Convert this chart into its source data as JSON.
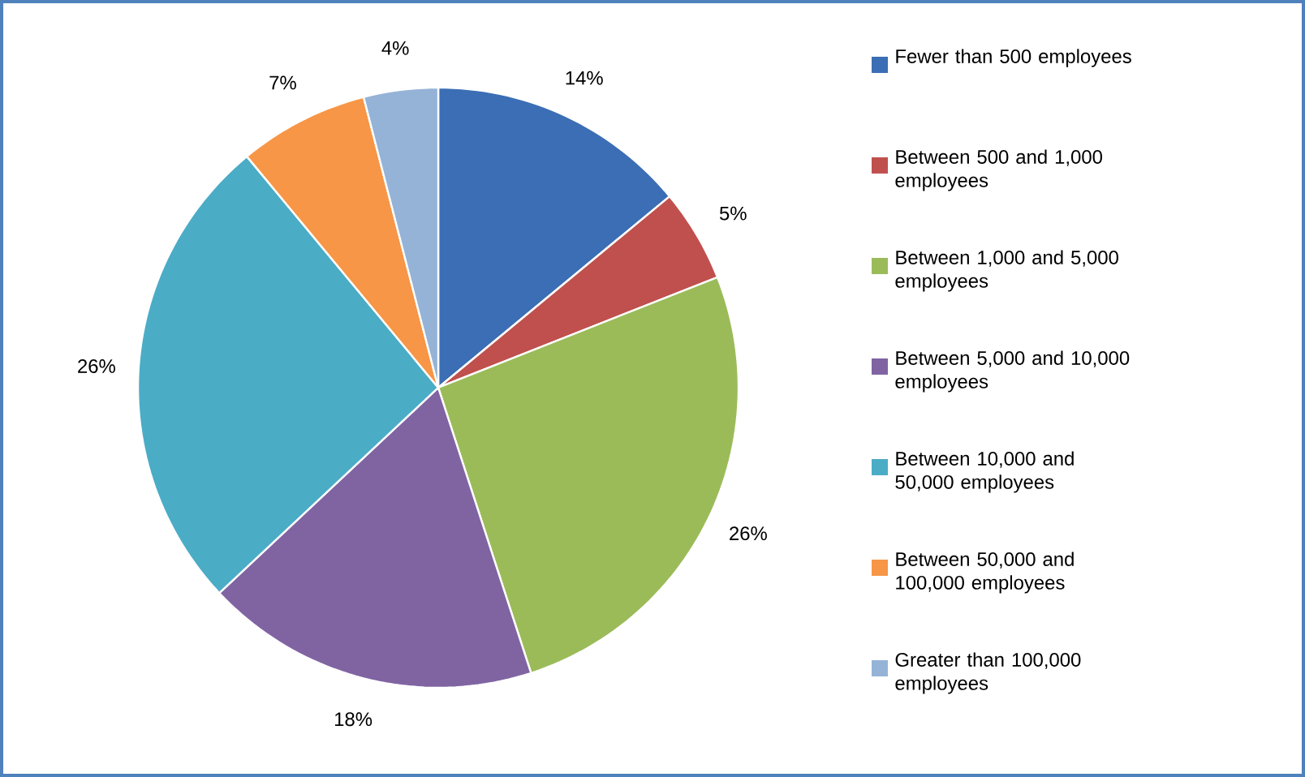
{
  "chart_data": {
    "type": "pie",
    "categories": [
      "Fewer than 500 employees",
      "Between 500 and 1,000 employees",
      "Between 1,000 and 5,000 employees",
      "Between 5,000 and 10,000 employees",
      "Between 10,000 and 50,000 employees",
      "Between 50,000 and 100,000 employees",
      "Greater than 100,000 employees"
    ],
    "values": [
      14,
      5,
      26,
      18,
      26,
      7,
      4
    ],
    "value_labels": [
      "14%",
      "5%",
      "26%",
      "18%",
      "26%",
      "7%",
      "4%"
    ],
    "colors": [
      "#3b6eb4",
      "#c0504d",
      "#9bbb59",
      "#8064a2",
      "#4bacc6",
      "#f79646",
      "#95b3d7"
    ],
    "legend": "right"
  }
}
